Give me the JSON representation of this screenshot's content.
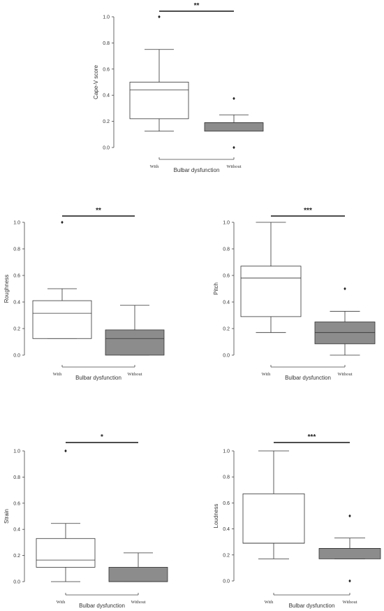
{
  "chart_data": [
    {
      "type": "box",
      "ylabel": "Cape-V score",
      "xlabel": "Bulbar dysfunction",
      "categories": [
        "With",
        "Without"
      ],
      "ylim": [
        0,
        1.0
      ],
      "yticks": [
        "0.0",
        "0.2",
        "0.4",
        "0.6",
        "0.8",
        "1.0"
      ],
      "significance": "**",
      "boxes": [
        {
          "group": "With",
          "whisker_low": 0.125,
          "q1": 0.22,
          "median": 0.44,
          "q3": 0.5,
          "whisker_high": 0.75,
          "outliers": [
            1.0
          ],
          "color": "#ffffff"
        },
        {
          "group": "Without",
          "whisker_low": 0.125,
          "q1": 0.125,
          "median": 0.19,
          "q3": 0.19,
          "whisker_high": 0.25,
          "outliers": [
            0.375,
            0.0
          ],
          "color": "#8c8c8c"
        }
      ]
    },
    {
      "type": "box",
      "ylabel": "Roughness",
      "xlabel": "Bulbar dysfunction",
      "categories": [
        "With",
        "Without"
      ],
      "ylim": [
        0,
        1.0
      ],
      "yticks": [
        "0.0",
        "0.2",
        "0.4",
        "0.6",
        "0.8",
        "1.0"
      ],
      "significance": "**",
      "boxes": [
        {
          "group": "With",
          "whisker_low": 0.125,
          "q1": 0.125,
          "median": 0.315,
          "q3": 0.41,
          "whisker_high": 0.5,
          "outliers": [
            1.0
          ],
          "color": "#ffffff"
        },
        {
          "group": "Without",
          "whisker_low": 0.0,
          "q1": 0.0,
          "median": 0.125,
          "q3": 0.19,
          "whisker_high": 0.375,
          "outliers": [],
          "color": "#8c8c8c"
        }
      ]
    },
    {
      "type": "box",
      "ylabel": "Pitch",
      "xlabel": "Bulbar dysfunction",
      "categories": [
        "With",
        "Without"
      ],
      "ylim": [
        0,
        1.0
      ],
      "yticks": [
        "0.0",
        "0.2",
        "0.4",
        "0.6",
        "0.8",
        "1.0"
      ],
      "significance": "***",
      "boxes": [
        {
          "group": "With",
          "whisker_low": 0.17,
          "q1": 0.29,
          "median": 0.58,
          "q3": 0.67,
          "whisker_high": 1.0,
          "outliers": [],
          "color": "#ffffff"
        },
        {
          "group": "Without",
          "whisker_low": 0.0,
          "q1": 0.085,
          "median": 0.17,
          "q3": 0.25,
          "whisker_high": 0.33,
          "outliers": [
            0.5
          ],
          "color": "#8c8c8c"
        }
      ]
    },
    {
      "type": "box",
      "ylabel": "Strain",
      "xlabel": "Bulbar dysfunction",
      "categories": [
        "With",
        "Without"
      ],
      "ylim": [
        0,
        1.0
      ],
      "yticks": [
        "0.0",
        "0.2",
        "0.4",
        "0.6",
        "0.8",
        "1.0"
      ],
      "significance": "*",
      "boxes": [
        {
          "group": "With",
          "whisker_low": 0.0,
          "q1": 0.11,
          "median": 0.165,
          "q3": 0.33,
          "whisker_high": 0.445,
          "outliers": [
            1.0
          ],
          "color": "#ffffff"
        },
        {
          "group": "Without",
          "whisker_low": 0.0,
          "q1": 0.0,
          "median": 0.0,
          "q3": 0.11,
          "whisker_high": 0.22,
          "outliers": [],
          "color": "#8c8c8c"
        }
      ]
    },
    {
      "type": "box",
      "ylabel": "Loudness",
      "xlabel": "Bulbar dysfunction",
      "categories": [
        "With",
        "Without"
      ],
      "ylim": [
        0,
        1.0
      ],
      "yticks": [
        "0.0",
        "0.2",
        "0.4",
        "0.6",
        "0.8",
        "1.0"
      ],
      "significance": "***",
      "boxes": [
        {
          "group": "With",
          "whisker_low": 0.17,
          "q1": 0.29,
          "median": 0.29,
          "q3": 0.67,
          "whisker_high": 1.0,
          "outliers": [],
          "color": "#ffffff"
        },
        {
          "group": "Without",
          "whisker_low": 0.17,
          "q1": 0.17,
          "median": 0.25,
          "q3": 0.25,
          "whisker_high": 0.33,
          "outliers": [
            0.5,
            0.0
          ],
          "color": "#8c8c8c"
        }
      ]
    }
  ]
}
